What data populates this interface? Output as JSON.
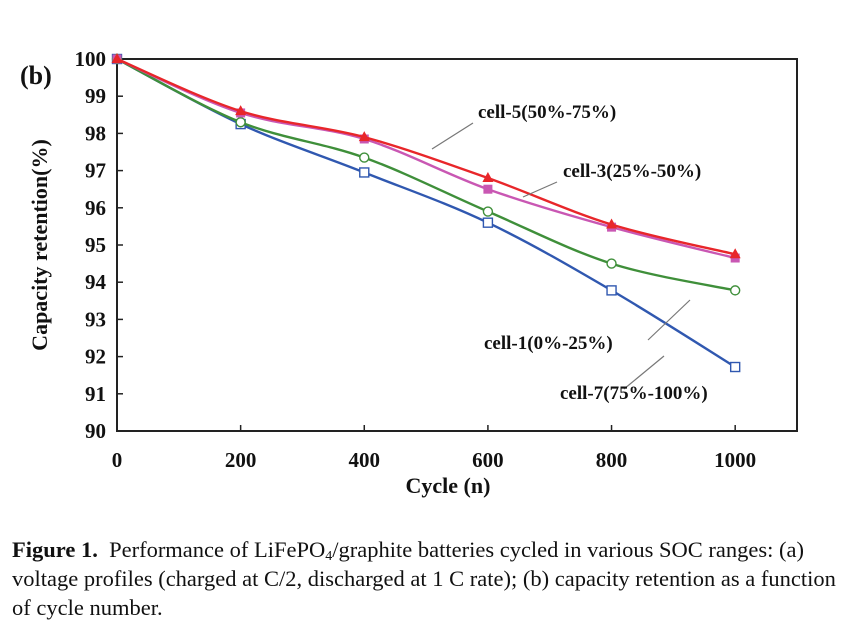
{
  "chart_data": {
    "type": "line",
    "panel_label": "(b)",
    "xlabel": "Cycle (n)",
    "ylabel": "Capacity retention(%)",
    "x": [
      0,
      200,
      400,
      600,
      800,
      1000
    ],
    "xlim": [
      0,
      1100
    ],
    "ylim": [
      90,
      100
    ],
    "xticks": [
      0,
      200,
      400,
      600,
      800,
      1000
    ],
    "yticks": [
      90,
      91,
      92,
      93,
      94,
      95,
      96,
      97,
      98,
      99,
      100
    ],
    "grid": false,
    "legend": "none",
    "series": [
      {
        "name": "cell-5(50%-75%)",
        "color": "#e8262a",
        "marker": "filled-triangle",
        "values": [
          100,
          98.6,
          97.9,
          96.8,
          95.55,
          94.75
        ]
      },
      {
        "name": "cell-3(25%-50%)",
        "color": "#c957b3",
        "marker": "filled-square",
        "values": [
          100,
          98.55,
          97.85,
          96.5,
          95.48,
          94.65
        ]
      },
      {
        "name": "cell-1(0%-25%)",
        "color": "#3f8f3a",
        "marker": "open-circle",
        "values": [
          100,
          98.3,
          97.35,
          95.9,
          94.5,
          93.78
        ]
      },
      {
        "name": "cell-7(75%-100%)",
        "color": "#3058b0",
        "marker": "open-square",
        "values": [
          100,
          98.25,
          96.95,
          95.6,
          93.78,
          91.72
        ]
      }
    ]
  },
  "caption": {
    "label": "Figure 1.",
    "text_before": "Performance of LiFePO",
    "subscript": "4",
    "text_after": "/graphite batteries cycled in various SOC ranges: (a) voltage profiles (charged at C/2, discharged at 1 C rate); (b) capacity retention as a function of cycle number."
  }
}
